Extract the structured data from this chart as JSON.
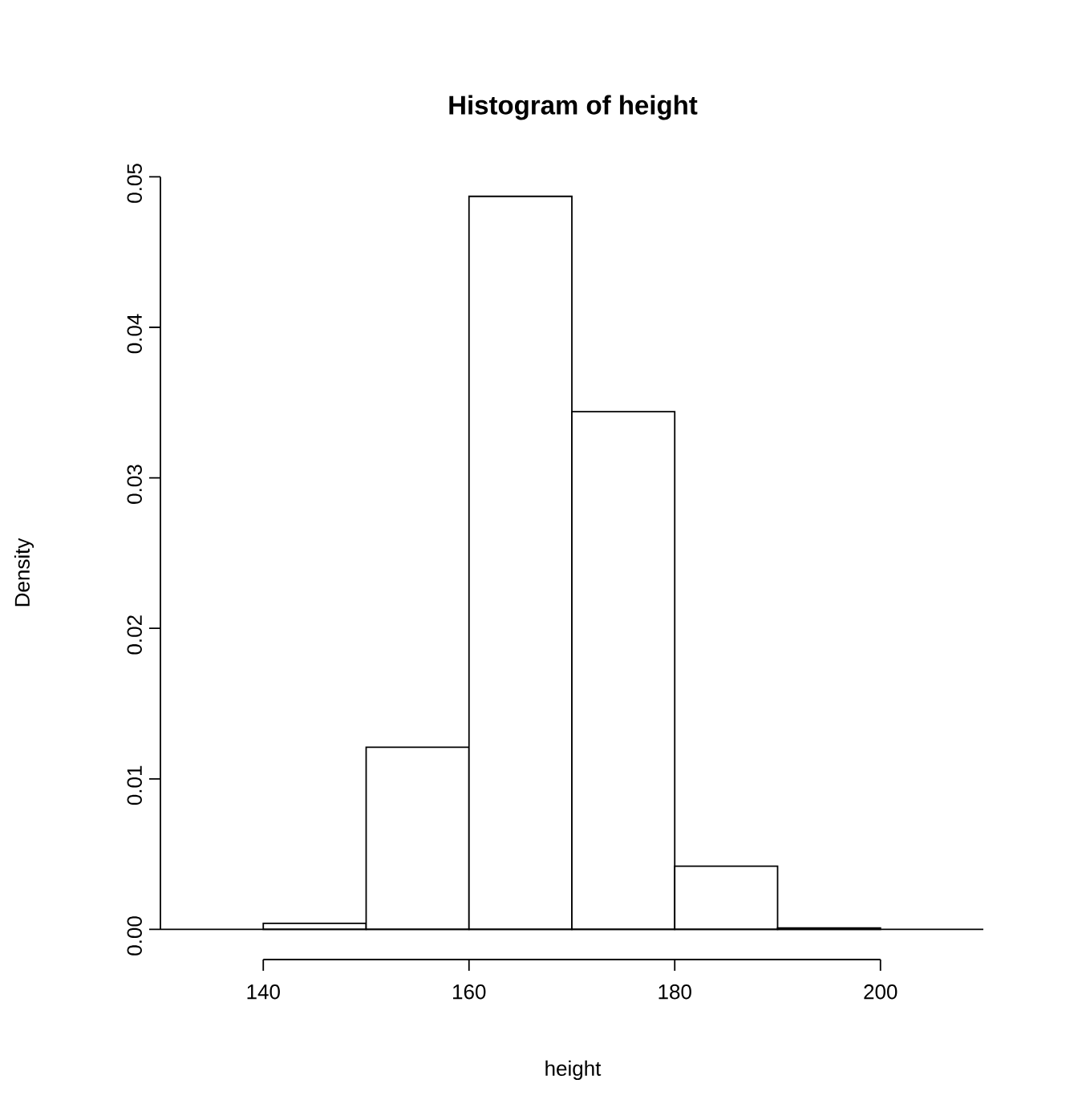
{
  "chart_data": {
    "type": "histogram",
    "title": "Histogram of height",
    "xlabel": "height",
    "ylabel": "Density",
    "bins": [
      140,
      150,
      160,
      170,
      180,
      190,
      200
    ],
    "values": [
      0.0004,
      0.0121,
      0.0487,
      0.0344,
      0.0042,
      0.0001
    ],
    "color": "#ffffff",
    "xlim": [
      130,
      210
    ],
    "ylim": [
      -0.002,
      0.05
    ],
    "xticks": [
      140,
      160,
      180,
      200
    ],
    "yticks": [
      {
        "value": 0,
        "label": "0.00"
      },
      {
        "value": 0.01,
        "label": "0.01"
      },
      {
        "value": 0.02,
        "label": "0.02"
      },
      {
        "value": 0.03,
        "label": "0.03"
      },
      {
        "value": 0.04,
        "label": "0.04"
      },
      {
        "value": 0.05,
        "label": "0.05"
      }
    ],
    "ref_lines": [
      {
        "axis": "y",
        "value": 0,
        "color": "#000000"
      }
    ]
  }
}
